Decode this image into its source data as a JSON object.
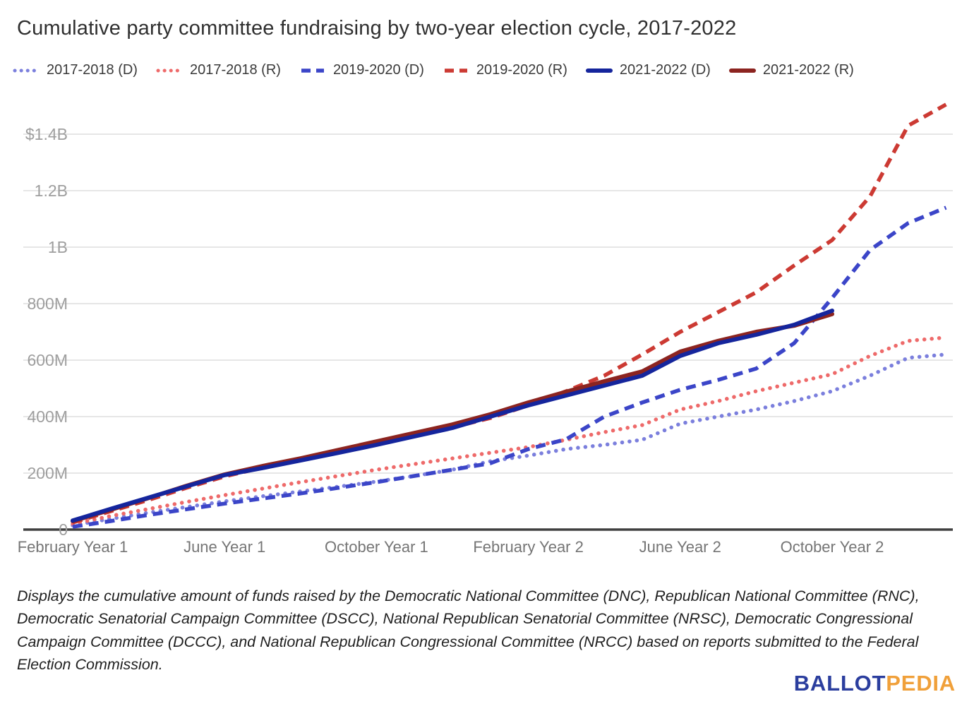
{
  "header": {
    "title": "Cumulative party committee fundraising by two-year election cycle, 2017-2022"
  },
  "footnote": {
    "text": "Displays the cumulative amount of funds raised by the Democratic National Committee (DNC), Republican National Committee (RNC), Democratic Senatorial Campaign Committee (DSCC), National Republican Senatorial Committee (NRSC), Democratic Congressional Campaign Committee (DCCC), and National Republican Congressional Committee (NRCC) based on reports submitted to the Federal Election Commission."
  },
  "logo": {
    "ballot": "BALLOT",
    "pedia": "PEDIA"
  },
  "colors": {
    "background": "#ffffff",
    "title_text": "#2f2f2f",
    "legend_text": "#3a3a3a",
    "y_tick_text": "#9e9e9e",
    "x_tick_text": "#757575",
    "gridline": "#e6e6e6",
    "axis_line": "#404040",
    "logo_blue": "#2b3e9e",
    "logo_orange": "#f0a03a"
  },
  "chart_data": {
    "type": "line",
    "title": "Cumulative party committee fundraising by two-year election cycle, 2017-2022",
    "value_unit": "USD millions",
    "ylim": [
      0,
      1550
    ],
    "grid": "horizontal",
    "legend_position": "top",
    "x_axis": {
      "description": "Months of the two-year election cycle, February Year 1 through end of Year 2",
      "ticks": [
        {
          "label": "February Year 1",
          "month": 0
        },
        {
          "label": "June Year 1",
          "month": 4
        },
        {
          "label": "October Year 1",
          "month": 8
        },
        {
          "label": "February Year 2",
          "month": 12
        },
        {
          "label": "June Year 2",
          "month": 16
        },
        {
          "label": "October Year 2",
          "month": 20
        }
      ]
    },
    "y_axis": {
      "ticks": [
        {
          "label": "0",
          "value": 0
        },
        {
          "label": "200M",
          "value": 200
        },
        {
          "label": "400M",
          "value": 400
        },
        {
          "label": "600M",
          "value": 600
        },
        {
          "label": "800M",
          "value": 800
        },
        {
          "label": "1B",
          "value": 1000
        },
        {
          "label": "1.2B",
          "value": 1200
        },
        {
          "label": "$1.4B",
          "value": 1400
        }
      ]
    },
    "series": [
      {
        "name": "2017-2018 (D)",
        "style": "dotted",
        "color": "#7b7fdd",
        "start_month": 0,
        "values": [
          15,
          38,
          60,
          80,
          100,
          118,
          135,
          152,
          170,
          190,
          212,
          242,
          262,
          285,
          300,
          318,
          375,
          400,
          425,
          455,
          490,
          545,
          608,
          620
        ]
      },
      {
        "name": "2017-2018 (R)",
        "style": "dotted",
        "color": "#ee6a6a",
        "start_month": 0,
        "values": [
          20,
          48,
          73,
          98,
          122,
          145,
          168,
          190,
          212,
          232,
          252,
          272,
          292,
          318,
          345,
          370,
          425,
          455,
          490,
          520,
          550,
          615,
          668,
          680
        ]
      },
      {
        "name": "2019-2020 (D)",
        "style": "dashed",
        "color": "#3b45c8",
        "start_month": 0,
        "values": [
          10,
          30,
          52,
          72,
          92,
          110,
          128,
          148,
          168,
          190,
          212,
          235,
          285,
          320,
          400,
          450,
          495,
          530,
          570,
          660,
          820,
          990,
          1085,
          1140
        ]
      },
      {
        "name": "2019-2020 (R)",
        "style": "dashed",
        "color": "#cc3a33",
        "start_month": 0,
        "values": [
          25,
          65,
          105,
          148,
          188,
          220,
          248,
          278,
          308,
          335,
          362,
          395,
          440,
          490,
          545,
          620,
          700,
          770,
          840,
          935,
          1025,
          1180,
          1430,
          1505
        ]
      },
      {
        "name": "2021-2022 (R)",
        "style": "solid",
        "color": "#8c2420",
        "start_month": 0,
        "values": [
          30,
          70,
          112,
          155,
          195,
          225,
          252,
          282,
          312,
          342,
          372,
          408,
          450,
          488,
          525,
          560,
          630,
          668,
          700,
          722,
          763
        ]
      },
      {
        "name": "2021-2022 (D)",
        "style": "solid",
        "color": "#15259c",
        "start_month": 0,
        "values": [
          32,
          73,
          113,
          153,
          193,
          218,
          245,
          272,
          300,
          330,
          360,
          400,
          440,
          475,
          510,
          545,
          615,
          660,
          690,
          725,
          775
        ]
      }
    ],
    "legend_order": [
      "2017-2018 (D)",
      "2017-2018 (R)",
      "2019-2020 (D)",
      "2019-2020 (R)",
      "2021-2022 (D)",
      "2021-2022 (R)"
    ]
  }
}
